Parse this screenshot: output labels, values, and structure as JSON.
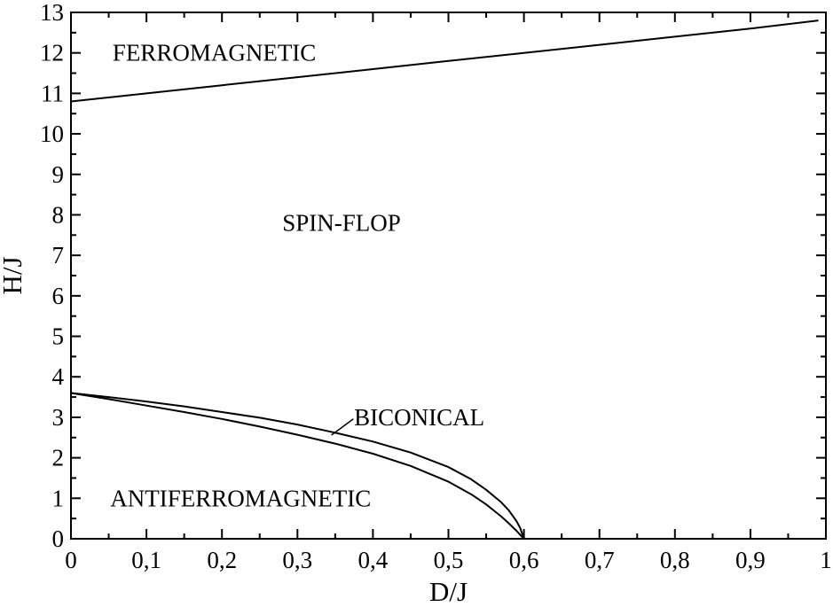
{
  "chart_data": {
    "type": "line",
    "title": "",
    "xlabel": "D/J",
    "ylabel": "H/J",
    "xlim": [
      0,
      1
    ],
    "ylim": [
      0,
      13
    ],
    "grid": false,
    "xticks": [
      {
        "value": 0,
        "label": "0"
      },
      {
        "value": 0.1,
        "label": "0,1"
      },
      {
        "value": 0.2,
        "label": "0,2"
      },
      {
        "value": 0.3,
        "label": "0,3"
      },
      {
        "value": 0.4,
        "label": "0,4"
      },
      {
        "value": 0.5,
        "label": "0,5"
      },
      {
        "value": 0.6,
        "label": "0,6"
      },
      {
        "value": 0.7,
        "label": "0,7"
      },
      {
        "value": 0.8,
        "label": "0,8"
      },
      {
        "value": 0.9,
        "label": "0,9"
      },
      {
        "value": 1,
        "label": "1"
      }
    ],
    "yticks": [
      {
        "value": 0,
        "label": "0"
      },
      {
        "value": 1,
        "label": "1"
      },
      {
        "value": 2,
        "label": "2"
      },
      {
        "value": 3,
        "label": "3"
      },
      {
        "value": 4,
        "label": "4"
      },
      {
        "value": 5,
        "label": "5"
      },
      {
        "value": 6,
        "label": "6"
      },
      {
        "value": 7,
        "label": "7"
      },
      {
        "value": 8,
        "label": "8"
      },
      {
        "value": 9,
        "label": "9"
      },
      {
        "value": 10,
        "label": "10"
      },
      {
        "value": 11,
        "label": "11"
      },
      {
        "value": 12,
        "label": "12"
      },
      {
        "value": 13,
        "label": "13"
      }
    ],
    "series": [
      {
        "color": "#000000",
        "x": [
          0,
          0.1,
          0.2,
          0.3,
          0.4,
          0.5,
          0.6,
          0.7,
          0.8,
          0.9,
          0.99
        ],
        "y": [
          10.8,
          11.0,
          11.2,
          11.4,
          11.6,
          11.8,
          12.0,
          12.2,
          12.4,
          12.6,
          12.8
        ]
      },
      {
        "color": "#000000",
        "x": [
          0,
          0.05,
          0.1,
          0.15,
          0.2,
          0.25,
          0.3,
          0.35,
          0.4,
          0.45,
          0.5,
          0.53,
          0.55,
          0.57,
          0.58,
          0.59,
          0.595,
          0.6
        ],
        "y": [
          3.6,
          3.5,
          3.39,
          3.27,
          3.13,
          2.99,
          2.82,
          2.62,
          2.4,
          2.13,
          1.77,
          1.47,
          1.21,
          0.9,
          0.7,
          0.44,
          0.27,
          0.0
        ]
      },
      {
        "color": "#000000",
        "x": [
          0,
          0.05,
          0.1,
          0.15,
          0.2,
          0.25,
          0.3,
          0.35,
          0.4,
          0.45,
          0.5,
          0.53,
          0.55,
          0.57,
          0.58,
          0.59,
          0.595,
          0.6
        ],
        "y": [
          3.6,
          3.45,
          3.29,
          3.13,
          2.96,
          2.77,
          2.57,
          2.35,
          2.1,
          1.8,
          1.41,
          1.1,
          0.85,
          0.55,
          0.38,
          0.2,
          0.1,
          0.0
        ]
      }
    ],
    "annotations": [
      {
        "text": "FERROMAGNETIC",
        "x": 0.055,
        "y": 12.0
      },
      {
        "text": "SPIN-FLOP",
        "x": 0.28,
        "y": 7.8
      },
      {
        "text": "BICONICAL",
        "x": 0.375,
        "y": 3.0
      },
      {
        "text": "ANTIFERROMAGNETIC",
        "x": 0.052,
        "y": 1.0
      }
    ],
    "pointer": {
      "x1": 0.345,
      "y1": 2.56,
      "x2": 0.374,
      "y2": 2.96
    }
  }
}
